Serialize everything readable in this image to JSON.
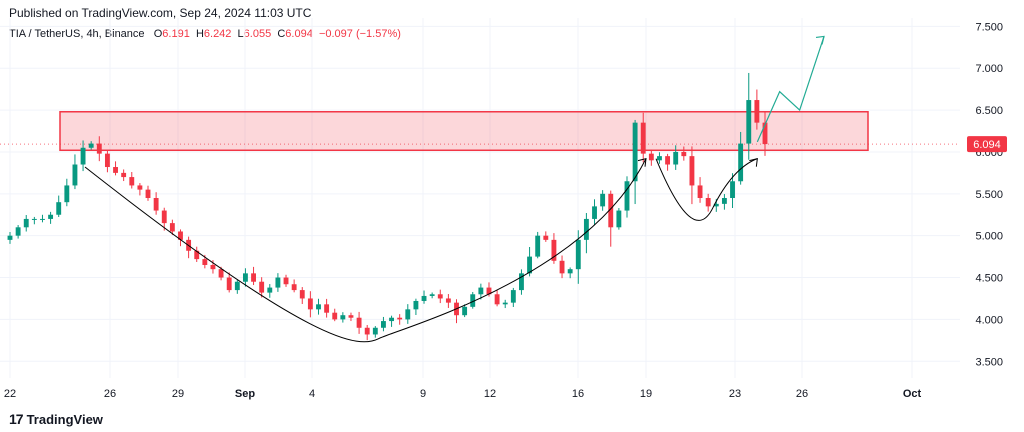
{
  "header": {
    "published": "Published on TradingView.com, Sep 24, 2024 11:03 UTC",
    "symbol": "TIA / TetherUS, 4h, Binance",
    "open_label": "O",
    "open": "6.191",
    "high_label": "H",
    "high": "6.242",
    "low_label": "L",
    "low": "6.055",
    "close_label": "C",
    "close": "6.094",
    "change": "−0.097 (−1.57%)"
  },
  "footer": {
    "brand": "TradingView",
    "logo": "17"
  },
  "colors": {
    "up": "#089981",
    "down": "#f23645",
    "zone_fill": "#f23645",
    "zone_opacity": 0.2,
    "projection": "#22ab94",
    "arc": "#000000",
    "price_label_bg": "#f23645"
  },
  "chart_data": {
    "type": "candlestick",
    "title": "",
    "ylim": [
      3.3,
      7.6
    ],
    "y_ticks": [
      "3.500",
      "4.000",
      "4.500",
      "5.000",
      "5.500",
      "6.000",
      "6.500",
      "7.000",
      "7.500"
    ],
    "x_ticks": [
      "22",
      "26",
      "29",
      "Sep",
      "4",
      "9",
      "12",
      "16",
      "19",
      "23",
      "26",
      "Oct"
    ],
    "last_price": "6.094",
    "resistance_zone": {
      "low": 6.02,
      "high": 6.48,
      "from": "Aug 24",
      "to": "Sep 29"
    },
    "cup_arc": [
      [
        "Aug 25",
        5.82
      ],
      [
        "Sep 4",
        4.05
      ],
      [
        "Sep 7",
        3.77
      ],
      [
        "Sep 12",
        4.0
      ],
      [
        "Sep 19",
        5.92
      ]
    ],
    "handle_arc": [
      [
        "Sep 19",
        5.92
      ],
      [
        "Sep 22",
        5.33
      ],
      [
        "Sep 24",
        5.92
      ]
    ],
    "projection_path": [
      [
        "Sep 24",
        6.12
      ],
      [
        "Sep 25",
        6.72
      ],
      [
        "Sep 25",
        6.5
      ],
      [
        "Sep 27",
        7.38
      ]
    ],
    "closes": [
      5.0,
      5.1,
      5.2,
      5.2,
      5.2,
      5.25,
      5.4,
      5.6,
      5.85,
      6.05,
      6.1,
      5.98,
      5.82,
      5.75,
      5.7,
      5.6,
      5.55,
      5.45,
      5.3,
      5.15,
      5.05,
      4.95,
      4.82,
      4.72,
      4.65,
      4.6,
      4.5,
      4.35,
      4.45,
      4.55,
      4.45,
      4.32,
      4.38,
      4.5,
      4.42,
      4.35,
      4.25,
      4.12,
      4.18,
      4.08,
      4.0,
      4.05,
      4.02,
      3.9,
      3.82,
      3.9,
      3.98,
      4.02,
      4.0,
      4.12,
      4.22,
      4.28,
      4.3,
      4.25,
      4.2,
      4.05,
      4.15,
      4.3,
      4.38,
      4.3,
      4.18,
      4.2,
      4.35,
      4.55,
      4.75,
      5.0,
      4.95,
      4.7,
      4.55,
      4.6,
      4.95,
      5.2,
      5.35,
      5.5,
      5.1,
      5.3,
      5.65,
      6.35,
      5.98,
      5.9,
      5.95,
      5.85,
      6.0,
      5.95,
      5.6,
      5.45,
      5.35,
      5.38,
      5.45,
      5.65,
      6.1,
      6.62,
      6.35,
      6.094
    ]
  }
}
